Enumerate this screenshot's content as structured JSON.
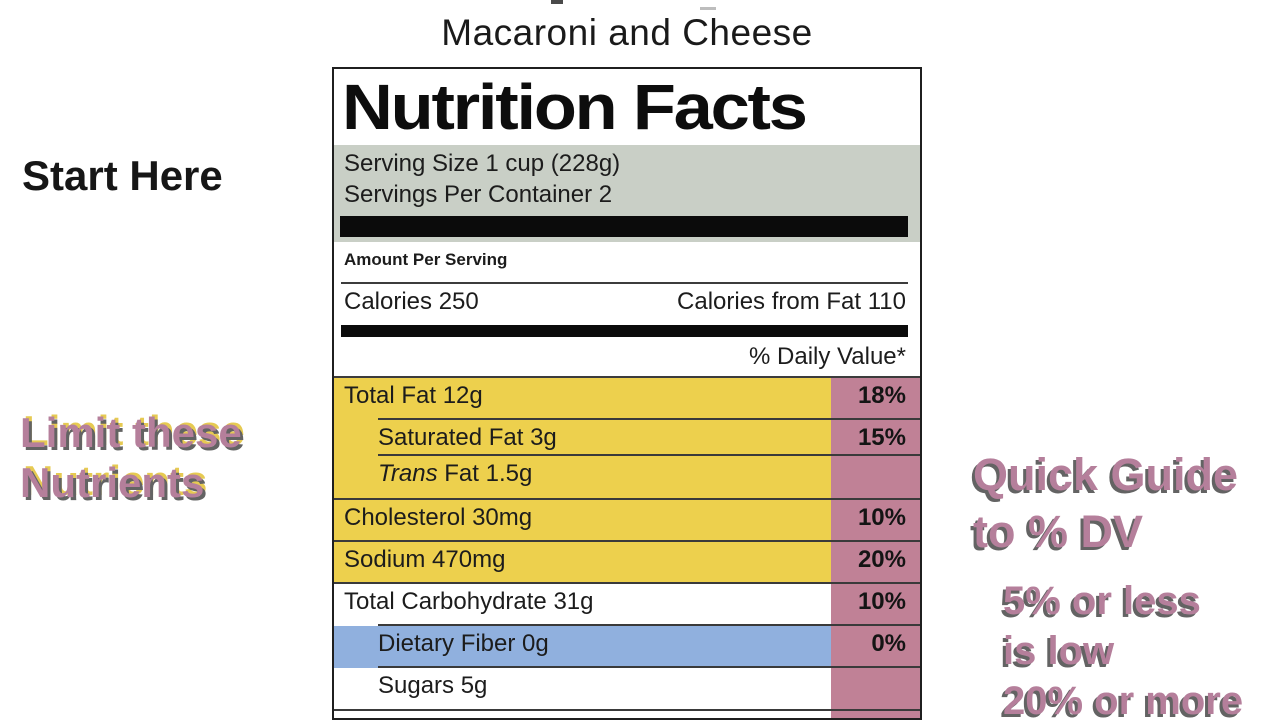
{
  "page_title": "Macaroni and Cheese",
  "annotations": {
    "start_here": "Start Here",
    "limit_nutrients": {
      "line1": "Limit these",
      "line2": "Nutrients"
    },
    "quick_guide": {
      "line1": "Quick Guide",
      "line2": "to % DV"
    },
    "quick_guide_detail": {
      "line1": "5% or less",
      "line2": "is low",
      "line3": "20% or more"
    }
  },
  "nutrition_label": {
    "title": "Nutrition Facts",
    "serving_size": "Serving Size 1 cup (228g)",
    "servings_per_container": "Servings Per Container 2",
    "amount_per_serving": "Amount Per Serving",
    "calories": "Calories 250",
    "calories_from_fat": "Calories from Fat 110",
    "daily_value_header": "% Daily Value*",
    "rows": [
      {
        "italic": "",
        "name": "Total Fat 12g",
        "pct": "18%",
        "bg": "yellow",
        "indent": false,
        "line": "indent"
      },
      {
        "italic": "",
        "name": "Saturated Fat 3g",
        "pct": "15%",
        "bg": "yellow",
        "indent": true,
        "line": "indent"
      },
      {
        "italic": "Trans",
        "name": " Fat 1.5g",
        "pct": "",
        "bg": "yellow",
        "indent": true,
        "line": "full"
      },
      {
        "italic": "",
        "name": "Cholesterol 30mg",
        "pct": "10%",
        "bg": "yellow",
        "indent": false,
        "line": "full"
      },
      {
        "italic": "",
        "name": "Sodium 470mg",
        "pct": "20%",
        "bg": "yellow",
        "indent": false,
        "line": "full"
      },
      {
        "italic": "",
        "name": "Total Carbohydrate 31g",
        "pct": "10%",
        "bg": "white",
        "indent": false,
        "line": "indent"
      },
      {
        "italic": "",
        "name": "Dietary Fiber 0g",
        "pct": "0%",
        "bg": "blue",
        "indent": true,
        "line": "indent"
      },
      {
        "italic": "",
        "name": "Sugars 5g",
        "pct": "",
        "bg": "white",
        "indent": true,
        "line": "full"
      }
    ]
  },
  "colors": {
    "highlight-yellow": "#edd04d",
    "dv-pink": "#c08196",
    "fiber-blue": "#90b0de",
    "serving-gray": "#c9cfc6",
    "annotation-mauve": "#b57f9b",
    "annotation-shadow": "#636363",
    "annotation-accent": "#e6ca52"
  }
}
